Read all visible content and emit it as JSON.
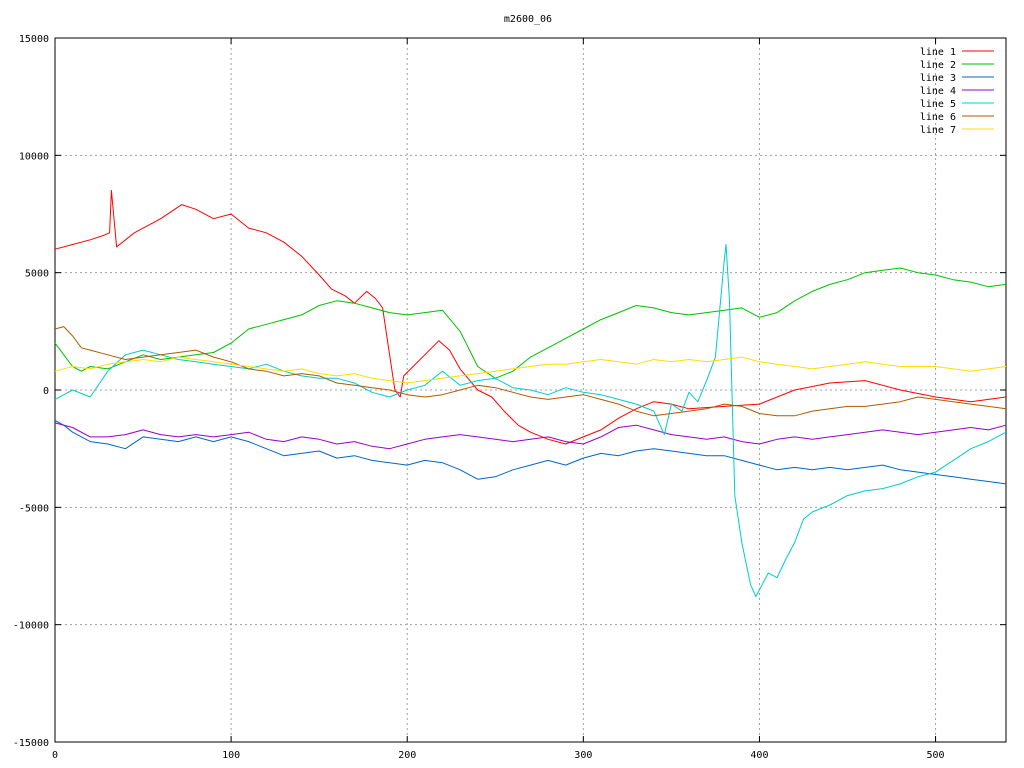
{
  "chart_data": {
    "type": "line",
    "title": "m2600_06",
    "xlabel": "",
    "ylabel": "",
    "xlim": [
      0,
      540
    ],
    "ylim": [
      -15000,
      15000
    ],
    "x_ticks": [
      0,
      100,
      200,
      300,
      400,
      500
    ],
    "y_ticks": [
      -15000,
      -10000,
      -5000,
      0,
      5000,
      10000,
      15000
    ],
    "grid": true,
    "legend_position": "top-right",
    "series": [
      {
        "name": "line 1",
        "color": "#ff0000",
        "x": [
          0,
          10,
          20,
          28,
          31,
          32,
          35,
          45,
          60,
          72,
          80,
          90,
          100,
          110,
          120,
          130,
          140,
          150,
          157,
          165,
          170,
          177,
          182,
          186,
          190,
          193,
          196,
          198,
          202,
          210,
          218,
          224,
          230,
          240,
          248,
          255,
          263,
          270,
          280,
          290,
          300,
          310,
          320,
          330,
          340,
          350,
          360,
          380,
          400,
          420,
          440,
          460,
          480,
          500,
          520,
          540
        ],
        "y": [
          6000,
          6200,
          6400,
          6600,
          6700,
          8500,
          6100,
          6700,
          7300,
          7900,
          7700,
          7300,
          7500,
          6900,
          6700,
          6300,
          5700,
          4900,
          4300,
          4000,
          3700,
          4200,
          3900,
          3500,
          1500,
          0,
          -300,
          600,
          900,
          1500,
          2100,
          1700,
          900,
          0,
          -300,
          -900,
          -1500,
          -1800,
          -2100,
          -2300,
          -2000,
          -1700,
          -1200,
          -800,
          -500,
          -600,
          -800,
          -700,
          -600,
          0,
          300,
          400,
          0,
          -300,
          -500,
          -300
        ]
      },
      {
        "name": "line 2",
        "color": "#00c000",
        "x": [
          0,
          5,
          10,
          15,
          20,
          30,
          40,
          50,
          60,
          70,
          80,
          90,
          100,
          110,
          120,
          130,
          140,
          150,
          160,
          170,
          180,
          190,
          200,
          210,
          220,
          230,
          240,
          250,
          260,
          270,
          280,
          290,
          300,
          310,
          320,
          330,
          340,
          350,
          360,
          370,
          380,
          390,
          400,
          410,
          420,
          430,
          440,
          450,
          460,
          470,
          480,
          490,
          500,
          510,
          520,
          530,
          540
        ],
        "y": [
          2000,
          1500,
          1000,
          800,
          1000,
          900,
          1200,
          1500,
          1300,
          1400,
          1500,
          1600,
          2000,
          2600,
          2800,
          3000,
          3200,
          3600,
          3800,
          3700,
          3500,
          3300,
          3200,
          3300,
          3400,
          2500,
          1000,
          500,
          800,
          1400,
          1800,
          2200,
          2600,
          3000,
          3300,
          3600,
          3500,
          3300,
          3200,
          3300,
          3400,
          3500,
          3100,
          3300,
          3800,
          4200,
          4500,
          4700,
          5000,
          5100,
          5200,
          5000,
          4900,
          4700,
          4600,
          4400,
          4500
        ]
      },
      {
        "name": "line 3",
        "color": "#0066cc",
        "x": [
          0,
          5,
          10,
          20,
          30,
          40,
          50,
          60,
          70,
          80,
          90,
          100,
          110,
          120,
          130,
          140,
          150,
          160,
          170,
          180,
          190,
          200,
          210,
          220,
          230,
          240,
          250,
          260,
          270,
          280,
          290,
          300,
          310,
          320,
          330,
          340,
          350,
          360,
          370,
          380,
          390,
          400,
          410,
          420,
          430,
          440,
          450,
          460,
          470,
          480,
          490,
          500,
          510,
          520,
          530,
          540
        ],
        "y": [
          -1300,
          -1500,
          -1800,
          -2200,
          -2300,
          -2500,
          -2000,
          -2100,
          -2200,
          -2000,
          -2200,
          -2000,
          -2200,
          -2500,
          -2800,
          -2700,
          -2600,
          -2900,
          -2800,
          -3000,
          -3100,
          -3200,
          -3000,
          -3100,
          -3400,
          -3800,
          -3700,
          -3400,
          -3200,
          -3000,
          -3200,
          -2900,
          -2700,
          -2800,
          -2600,
          -2500,
          -2600,
          -2700,
          -2800,
          -2800,
          -3000,
          -3200,
          -3400,
          -3300,
          -3400,
          -3300,
          -3400,
          -3300,
          -3200,
          -3400,
          -3500,
          -3600,
          -3700,
          -3800,
          -3900,
          -4000
        ]
      },
      {
        "name": "line 4",
        "color": "#9900cc",
        "x": [
          0,
          10,
          20,
          30,
          40,
          50,
          60,
          70,
          80,
          90,
          100,
          110,
          120,
          130,
          140,
          150,
          160,
          170,
          180,
          190,
          200,
          210,
          220,
          230,
          240,
          250,
          260,
          270,
          280,
          290,
          300,
          310,
          320,
          330,
          340,
          350,
          360,
          370,
          380,
          390,
          400,
          410,
          420,
          430,
          440,
          450,
          460,
          470,
          480,
          490,
          500,
          510,
          520,
          530,
          540
        ],
        "y": [
          -1400,
          -1600,
          -2000,
          -2000,
          -1900,
          -1700,
          -1900,
          -2000,
          -1900,
          -2000,
          -1900,
          -1800,
          -2100,
          -2200,
          -2000,
          -2100,
          -2300,
          -2200,
          -2400,
          -2500,
          -2300,
          -2100,
          -2000,
          -1900,
          -2000,
          -2100,
          -2200,
          -2100,
          -2000,
          -2200,
          -2300,
          -2000,
          -1600,
          -1500,
          -1700,
          -1900,
          -2000,
          -2100,
          -2000,
          -2200,
          -2300,
          -2100,
          -2000,
          -2100,
          -2000,
          -1900,
          -1800,
          -1700,
          -1800,
          -1900,
          -1800,
          -1700,
          -1600,
          -1700,
          -1500
        ]
      },
      {
        "name": "line 5",
        "color": "#00cccc",
        "x": [
          0,
          10,
          20,
          30,
          40,
          50,
          60,
          70,
          80,
          90,
          100,
          110,
          120,
          130,
          140,
          150,
          160,
          170,
          180,
          190,
          200,
          210,
          220,
          230,
          240,
          250,
          260,
          270,
          280,
          290,
          300,
          310,
          320,
          330,
          340,
          346,
          350,
          356,
          360,
          365,
          370,
          375,
          380,
          381,
          383,
          386,
          390,
          395,
          398,
          405,
          410,
          415,
          420,
          425,
          430,
          440,
          450,
          460,
          470,
          480,
          490,
          500,
          510,
          520,
          530,
          540
        ],
        "y": [
          -400,
          0,
          -300,
          800,
          1500,
          1700,
          1500,
          1300,
          1200,
          1100,
          1000,
          900,
          1100,
          800,
          600,
          500,
          500,
          300,
          -100,
          -300,
          0,
          200,
          800,
          200,
          400,
          500,
          100,
          0,
          -200,
          100,
          -100,
          -200,
          -400,
          -600,
          -900,
          -1900,
          -600,
          -900,
          -100,
          -500,
          400,
          1400,
          5500,
          6200,
          3800,
          -4500,
          -6500,
          -8300,
          -8800,
          -7800,
          -8000,
          -7200,
          -6500,
          -5500,
          -5200,
          -4900,
          -4500,
          -4300,
          -4200,
          -4000,
          -3700,
          -3500,
          -3000,
          -2500,
          -2200,
          -1800
        ]
      },
      {
        "name": "line 6",
        "color": "#b35900",
        "x": [
          0,
          5,
          10,
          15,
          20,
          30,
          40,
          50,
          60,
          70,
          80,
          90,
          100,
          110,
          120,
          130,
          140,
          150,
          160,
          170,
          180,
          190,
          200,
          210,
          220,
          230,
          240,
          250,
          260,
          270,
          280,
          290,
          300,
          310,
          320,
          330,
          340,
          350,
          360,
          370,
          380,
          390,
          400,
          410,
          420,
          430,
          440,
          450,
          460,
          470,
          480,
          490,
          500,
          510,
          520,
          530,
          540
        ],
        "y": [
          2600,
          2700,
          2300,
          1800,
          1700,
          1500,
          1300,
          1400,
          1500,
          1600,
          1700,
          1400,
          1200,
          900,
          800,
          600,
          700,
          600,
          300,
          200,
          100,
          0,
          -200,
          -300,
          -200,
          0,
          200,
          100,
          -100,
          -300,
          -400,
          -300,
          -200,
          -400,
          -600,
          -900,
          -1100,
          -1000,
          -900,
          -800,
          -600,
          -700,
          -1000,
          -1100,
          -1100,
          -900,
          -800,
          -700,
          -700,
          -600,
          -500,
          -300,
          -400,
          -500,
          -600,
          -700,
          -800
        ]
      },
      {
        "name": "line 7",
        "color": "#ffdd00",
        "x": [
          0,
          10,
          20,
          30,
          40,
          50,
          60,
          70,
          80,
          90,
          100,
          110,
          120,
          130,
          140,
          150,
          160,
          170,
          180,
          190,
          200,
          210,
          220,
          230,
          240,
          250,
          260,
          270,
          280,
          290,
          300,
          310,
          320,
          330,
          340,
          350,
          360,
          370,
          380,
          390,
          400,
          410,
          420,
          430,
          440,
          450,
          460,
          470,
          480,
          490,
          500,
          510,
          520,
          530,
          540
        ],
        "y": [
          800,
          1000,
          900,
          1100,
          1200,
          1300,
          1200,
          1400,
          1300,
          1200,
          1100,
          1000,
          900,
          800,
          900,
          700,
          600,
          700,
          500,
          400,
          300,
          400,
          500,
          600,
          700,
          800,
          900,
          1000,
          1100,
          1100,
          1200,
          1300,
          1200,
          1100,
          1300,
          1200,
          1300,
          1200,
          1300,
          1400,
          1200,
          1100,
          1000,
          900,
          1000,
          1100,
          1200,
          1100,
          1000,
          1000,
          1000,
          900,
          800,
          900,
          1000
        ]
      }
    ]
  }
}
